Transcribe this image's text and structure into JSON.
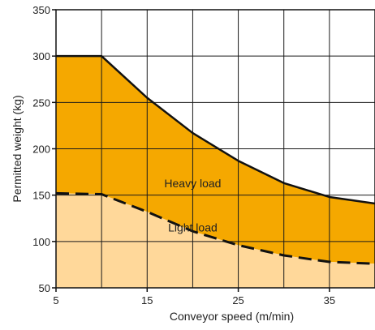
{
  "chart_data": {
    "type": "area",
    "xlabel": "Conveyor speed (m/min)",
    "ylabel": "Permitted weight (kg)",
    "xlim": [
      5,
      40
    ],
    "ylim": [
      50,
      350
    ],
    "x_ticks": [
      5,
      15,
      25,
      35
    ],
    "y_ticks": [
      50,
      100,
      150,
      200,
      250,
      300,
      350
    ],
    "grid": true,
    "series": [
      {
        "name": "Heavy load",
        "line_style": "solid",
        "color": "#F5A800",
        "x": [
          5,
          10,
          15,
          20,
          25,
          30,
          35,
          40
        ],
        "y": [
          300,
          300,
          255,
          217,
          187,
          163,
          148,
          141
        ]
      },
      {
        "name": "Light load",
        "line_style": "dashed",
        "color": "#FFD89A",
        "x": [
          5,
          10,
          15,
          20,
          25,
          30,
          35,
          40
        ],
        "y": [
          152,
          151,
          132,
          111,
          96,
          85,
          78,
          76
        ]
      }
    ],
    "annotations": [
      {
        "text": "Heavy load",
        "x": 20,
        "y": 163
      },
      {
        "text": "Light load",
        "x": 20,
        "y": 115
      }
    ]
  }
}
